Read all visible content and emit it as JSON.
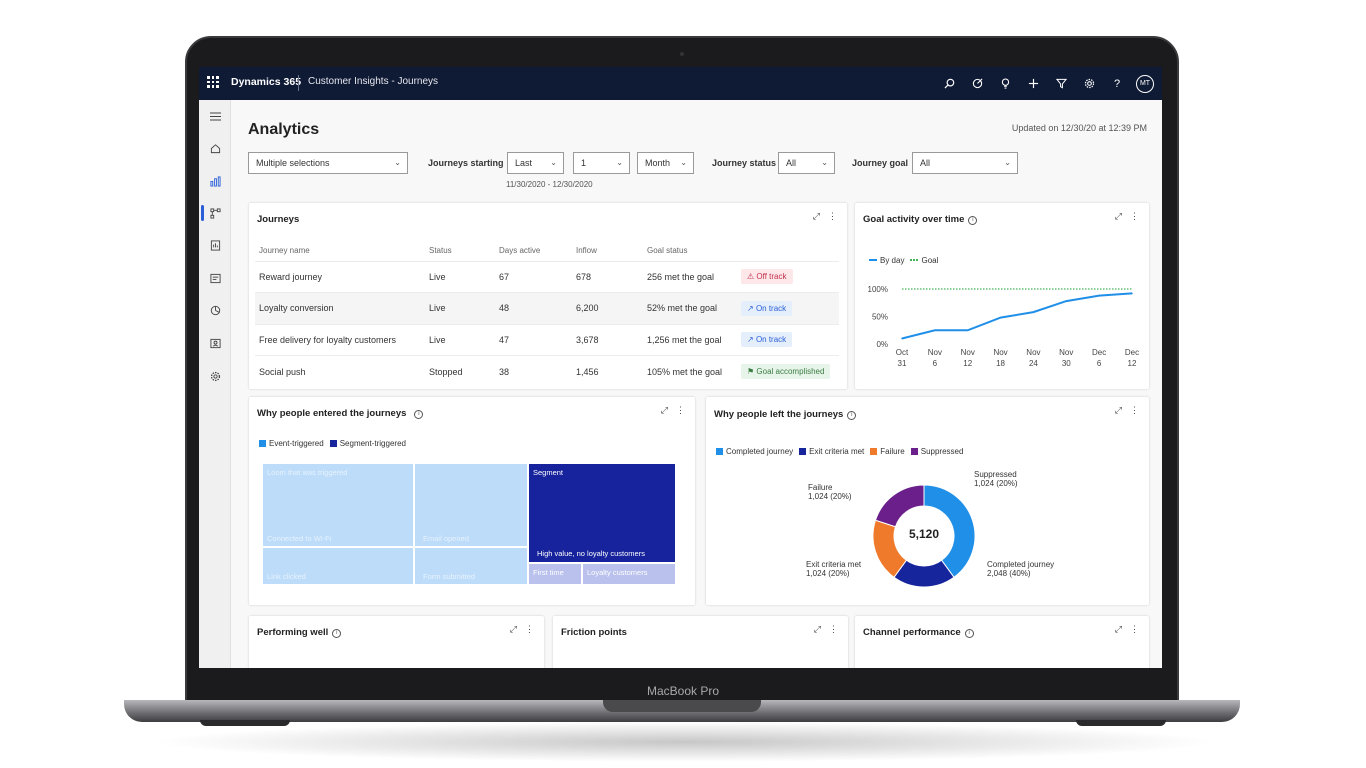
{
  "device": {
    "label": "MacBook Pro"
  },
  "topbar": {
    "brand": "Dynamics 365",
    "app_title": "Customer Insights - Journeys",
    "icons": [
      "search-icon",
      "target-icon",
      "lightbulb-icon",
      "plus-icon",
      "filter-icon",
      "gear-icon",
      "help-icon"
    ],
    "avatar": "MT"
  },
  "leftnav": {
    "icons": [
      "hamburger-icon",
      "home-icon",
      "analytics-icon",
      "journeys-icon",
      "report-icon",
      "forms-icon",
      "segments-icon",
      "contacts-icon",
      "settings-icon"
    ]
  },
  "header": {
    "title": "Analytics",
    "updated": "Updated on 12/30/20 at 12:39 PM"
  },
  "filters": {
    "selection": "Multiple selections",
    "journeys_starting_label": "Journeys starting",
    "period_type": "Last",
    "period_count": "1",
    "period_unit": "Month",
    "date_range": "11/30/2020 - 12/30/2020",
    "journey_status_label": "Journey status",
    "journey_status": "All",
    "journey_goal_label": "Journey goal",
    "journey_goal": "All"
  },
  "journeys_card": {
    "title": "Journeys",
    "columns": [
      "Journey name",
      "Status",
      "Days active",
      "Inflow",
      "Goal status"
    ],
    "rows": [
      {
        "name": "Reward journey",
        "status": "Live",
        "days": "67",
        "inflow": "678",
        "goal": "256 met the goal",
        "badge": "Off track"
      },
      {
        "name": "Loyalty conversion",
        "status": "Live",
        "days": "48",
        "inflow": "6,200",
        "goal": "52% met the goal",
        "badge": "On track"
      },
      {
        "name": "Free delivery for loyalty customers",
        "status": "Live",
        "days": "47",
        "inflow": "3,678",
        "goal": "1,256 met the goal",
        "badge": "On track"
      },
      {
        "name": "Social push",
        "status": "Stopped",
        "days": "38",
        "inflow": "1,456",
        "goal": "105% met the goal",
        "badge": "Goal accomplished"
      }
    ]
  },
  "goal_card": {
    "title": "Goal activity over time",
    "legend": [
      "By day",
      "Goal"
    ],
    "y_ticks": [
      "100%",
      "50%",
      "0%"
    ],
    "x_ticks": [
      [
        "Oct",
        "31"
      ],
      [
        "Nov",
        "6"
      ],
      [
        "Nov",
        "12"
      ],
      [
        "Nov",
        "18"
      ],
      [
        "Nov",
        "24"
      ],
      [
        "Nov",
        "30"
      ],
      [
        "Dec",
        "6"
      ],
      [
        "Dec",
        "12"
      ]
    ]
  },
  "entered_card": {
    "title": "Why people entered the journeys",
    "legend": [
      "Event-triggered",
      "Segment-triggered"
    ],
    "cells": {
      "a": "Loom that was triggered",
      "b": "Connected to Wi-Fi",
      "c": "Email opened",
      "d": "Link clicked",
      "e": "Form submitted",
      "f": "Segment",
      "g": "High value, no loyalty customers",
      "h": "First time",
      "i": "Loyalty customers"
    }
  },
  "left_card": {
    "title": "Why people left the journeys",
    "legend": [
      "Completed journey",
      "Exit criteria met",
      "Failure",
      "Suppressed"
    ],
    "total": "5,120",
    "labels": {
      "failure": [
        "Failure",
        "1,024 (20%)"
      ],
      "suppressed": [
        "Suppressed",
        "1,024 (20%)"
      ],
      "exit": [
        "Exit criteria met",
        "1,024 (20%)"
      ],
      "completed": [
        "Completed journey",
        "2,048 (40%)"
      ]
    }
  },
  "bottom_cards": [
    "Performing well",
    "Friction points",
    "Channel performance"
  ],
  "colors": {
    "navy": "#0f1a35",
    "accent": "#2b5fd9",
    "completed": "#1f8fe8",
    "exit": "#17259d",
    "failure": "#f07a2b",
    "suppressed": "#6b1f8a",
    "goal_line": "#43b45a"
  },
  "chart_data": [
    {
      "type": "line",
      "title": "Goal activity over time",
      "x": [
        "Oct 31",
        "Nov 6",
        "Nov 12",
        "Nov 18",
        "Nov 24",
        "Nov 30",
        "Dec 6",
        "Dec 12"
      ],
      "series": [
        {
          "name": "By day",
          "values": [
            10,
            25,
            25,
            48,
            58,
            78,
            88,
            92
          ]
        },
        {
          "name": "Goal",
          "values": [
            100,
            100,
            100,
            100,
            100,
            100,
            100,
            100
          ]
        }
      ],
      "ylim": [
        0,
        100
      ],
      "y_unit": "%"
    },
    {
      "type": "pie",
      "title": "Why people left the journeys",
      "categories": [
        "Completed journey",
        "Exit criteria met",
        "Failure",
        "Suppressed"
      ],
      "values": [
        2048,
        1024,
        1024,
        1024
      ],
      "total": 5120
    },
    {
      "type": "heatmap",
      "title": "Why people entered the journeys",
      "categories": [
        "Event-triggered",
        "Segment-triggered"
      ]
    }
  ]
}
